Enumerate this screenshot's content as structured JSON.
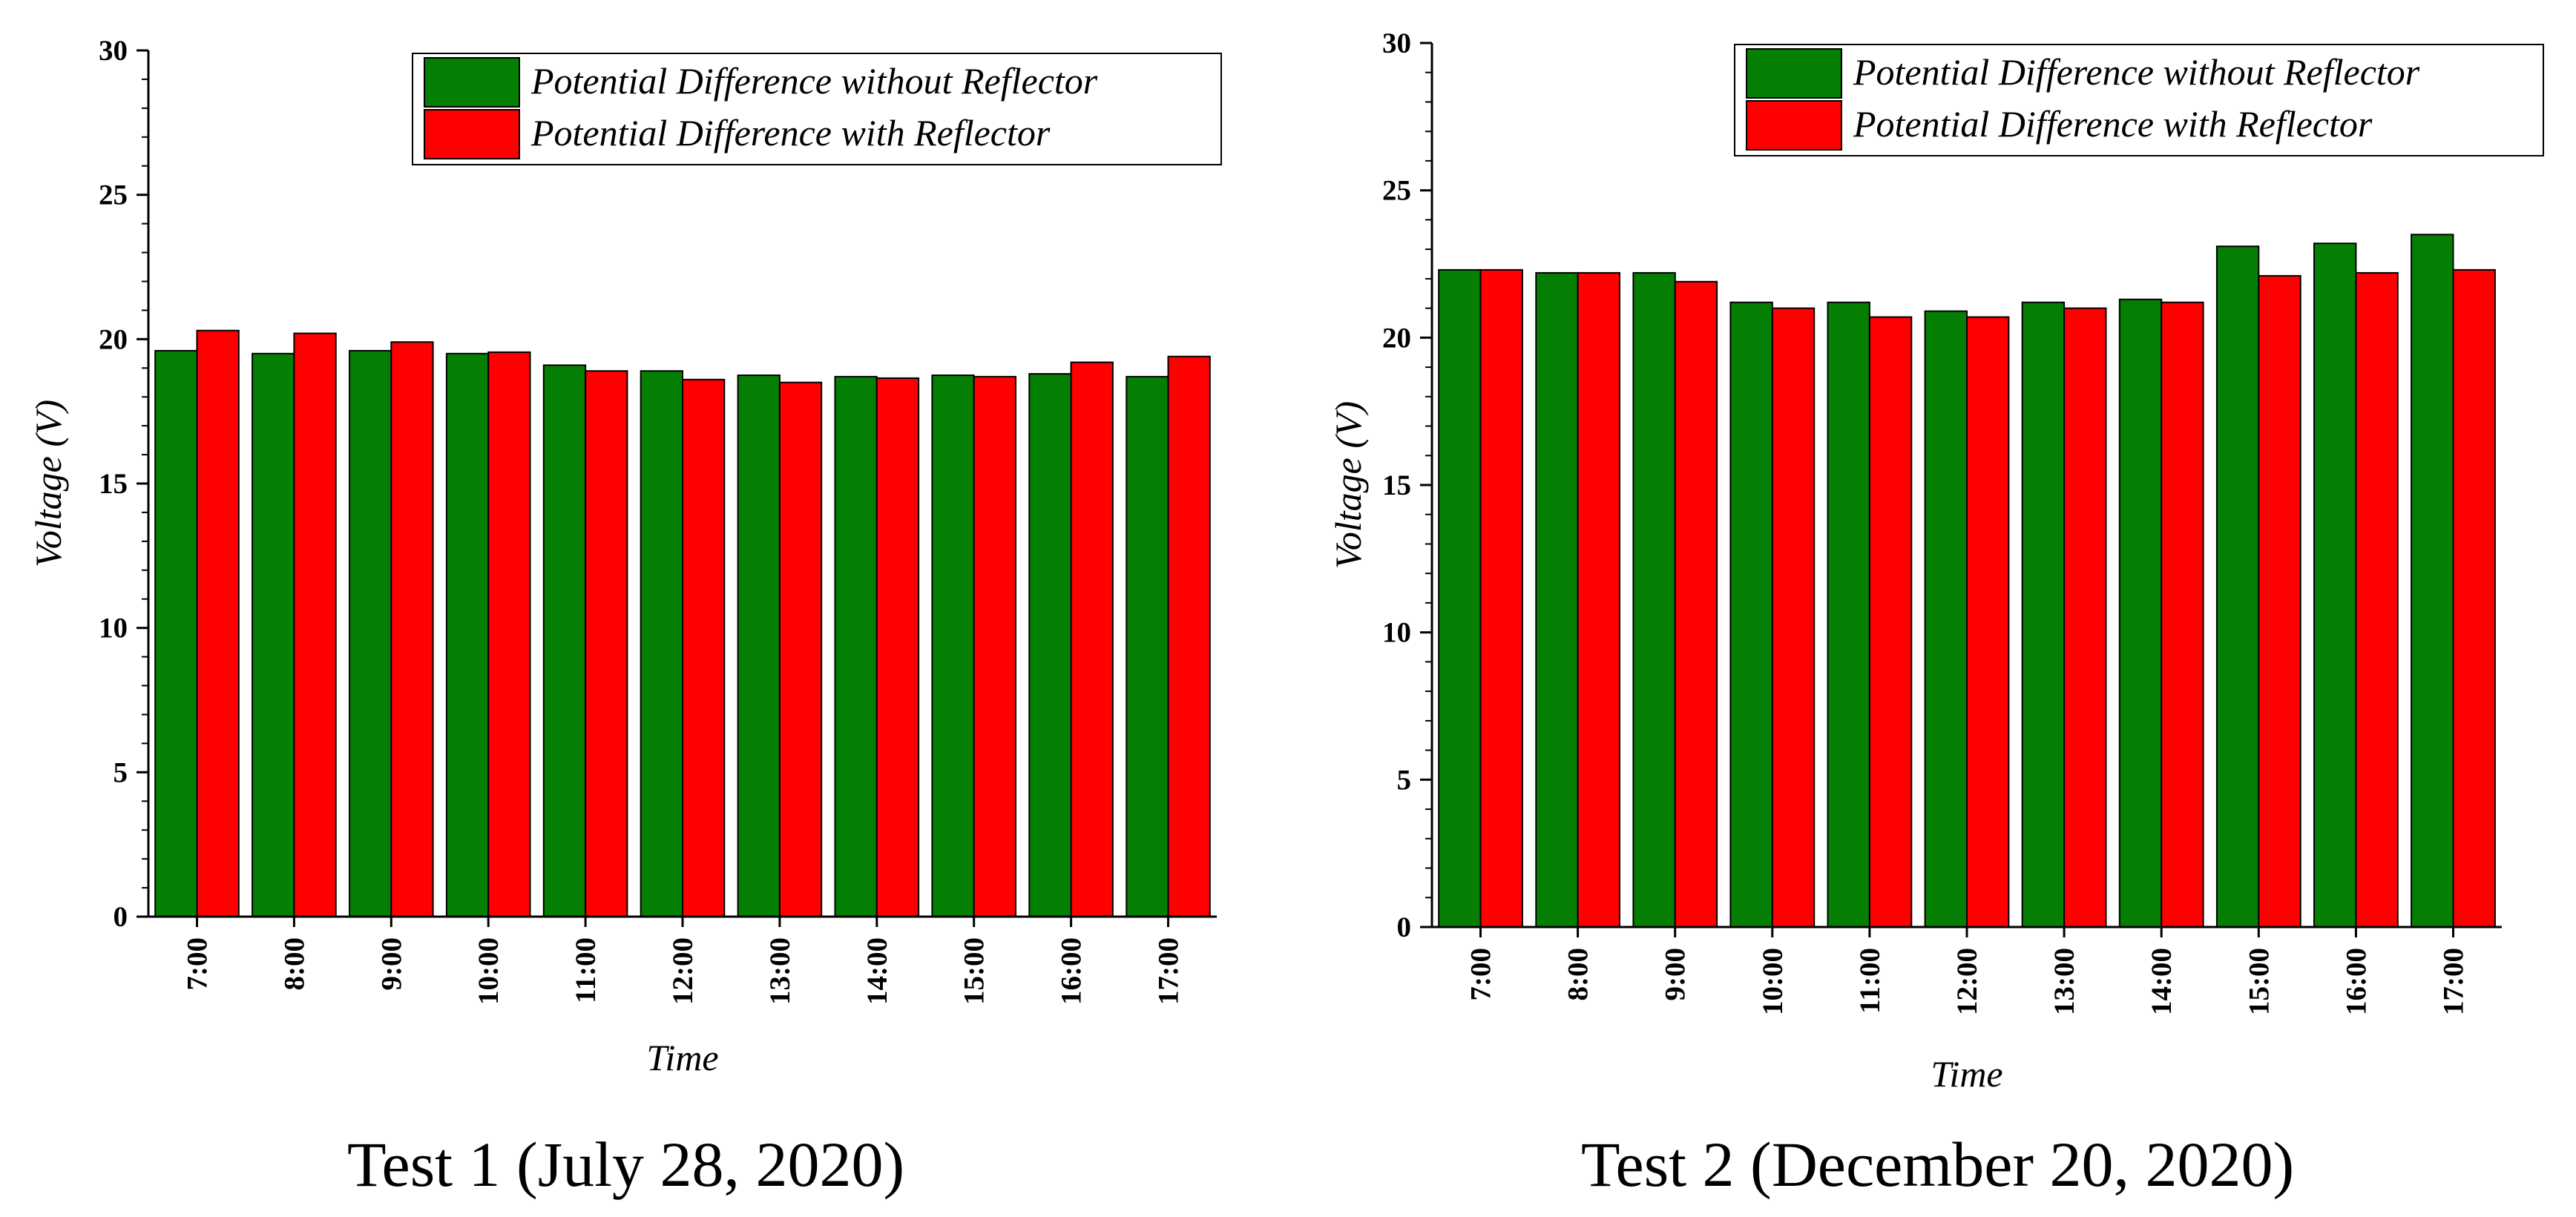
{
  "chart_data": [
    {
      "type": "bar",
      "title": "Test 1 (July 28, 2020)",
      "xlabel": "Time",
      "ylabel": "Voltage (V)",
      "ylim": [
        0,
        30
      ],
      "yticks": [
        "0",
        "5",
        "10",
        "15",
        "20",
        "25",
        "30"
      ],
      "categories": [
        "7:00",
        "8:00",
        "9:00",
        "10:00",
        "11:00",
        "12:00",
        "13:00",
        "14:00",
        "15:00",
        "16:00",
        "17:00"
      ],
      "legend_position": "top-right",
      "series": [
        {
          "name": "Potential Difference without Reflector",
          "color": "#047F04",
          "values": [
            19.6,
            19.5,
            19.6,
            19.5,
            19.1,
            18.9,
            18.75,
            18.7,
            18.75,
            18.8,
            18.7
          ]
        },
        {
          "name": "Potential Difference with Reflector",
          "color": "#FF0000",
          "values": [
            20.3,
            20.2,
            19.9,
            19.55,
            18.9,
            18.6,
            18.5,
            18.65,
            18.7,
            19.2,
            19.4
          ]
        }
      ]
    },
    {
      "type": "bar",
      "title": "Test 2 (December 20, 2020)",
      "xlabel": "Time",
      "ylabel": "Voltage (V)",
      "ylim": [
        0,
        30
      ],
      "yticks": [
        "0",
        "5",
        "10",
        "15",
        "20",
        "25",
        "30"
      ],
      "categories": [
        "7:00",
        "8:00",
        "9:00",
        "10:00",
        "11:00",
        "12:00",
        "13:00",
        "14:00",
        "15:00",
        "16:00",
        "17:00"
      ],
      "legend_position": "top-right",
      "series": [
        {
          "name": "Potential Difference without Reflector",
          "color": "#047F04",
          "values": [
            22.3,
            22.2,
            22.2,
            21.2,
            21.2,
            20.9,
            21.2,
            21.3,
            23.1,
            23.2,
            23.5
          ]
        },
        {
          "name": "Potential Difference with Reflector",
          "color": "#FF0000",
          "values": [
            22.3,
            22.2,
            21.9,
            21.0,
            20.7,
            20.7,
            21.0,
            21.2,
            22.1,
            22.2,
            22.3
          ]
        }
      ]
    }
  ]
}
